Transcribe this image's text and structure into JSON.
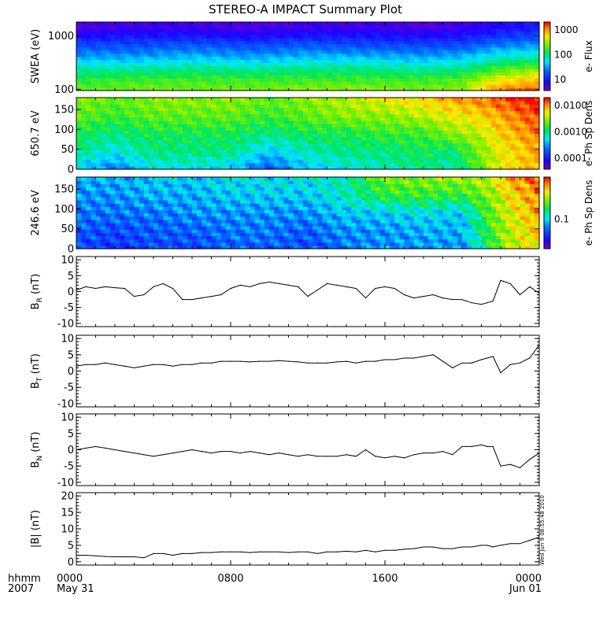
{
  "title": "STEREO-A IMPACT Summary Plot",
  "stamp": "Wed Jun  9 08:55:48 2010",
  "x_axis": {
    "corner_labels": [
      "hhmm",
      "2007"
    ],
    "ticks": [
      {
        "hour": 0,
        "label": "0000",
        "sub": "May 31"
      },
      {
        "hour": 8,
        "label": "0800",
        "sub": ""
      },
      {
        "hour": 16,
        "label": "1600",
        "sub": ""
      },
      {
        "hour": 24,
        "label": "0000",
        "sub": "Jun 01"
      }
    ],
    "range_hours": [
      0,
      24
    ]
  },
  "colors": {
    "line": "#000000",
    "frame": "#000000"
  },
  "chart_data": [
    {
      "type": "heatmap",
      "ylabel": "SWEA (eV)",
      "y_scale": "log",
      "ylim": [
        95,
        1800
      ],
      "y_ticks": [
        "1000",
        "100"
      ],
      "colorbar": {
        "label": "e- Flux",
        "scale": "log",
        "ticks": [
          "1000",
          "100",
          "10"
        ]
      },
      "x_hours": [
        0,
        3,
        6,
        9,
        12,
        15,
        18,
        20,
        21.2,
        22,
        24
      ],
      "energies_ev": [
        100,
        150,
        250,
        400,
        700,
        1000,
        1500
      ],
      "flux_log10": [
        [
          2.2,
          2.3,
          2.3,
          2.3,
          2.4,
          2.4,
          2.3,
          2.4,
          3.0,
          3.2,
          3.4
        ],
        [
          2.0,
          2.1,
          2.1,
          2.1,
          2.1,
          2.1,
          2.1,
          2.2,
          2.6,
          2.8,
          3.0
        ],
        [
          1.6,
          1.6,
          1.7,
          1.6,
          1.7,
          1.7,
          1.6,
          1.7,
          1.9,
          2.1,
          2.3
        ],
        [
          1.1,
          1.1,
          1.2,
          1.1,
          1.2,
          1.2,
          1.1,
          1.2,
          1.4,
          1.5,
          1.6
        ],
        [
          0.6,
          0.6,
          0.7,
          0.6,
          0.7,
          0.6,
          0.6,
          0.6,
          0.8,
          0.9,
          1.0
        ],
        [
          0.2,
          0.3,
          0.3,
          0.2,
          0.3,
          0.3,
          0.2,
          0.3,
          0.4,
          0.5,
          0.6
        ],
        [
          -0.1,
          0.0,
          0.0,
          -0.1,
          0.0,
          0.0,
          -0.1,
          0.0,
          0.1,
          0.2,
          0.3
        ]
      ]
    },
    {
      "type": "heatmap",
      "ylabel": "650.7 eV",
      "ylim": [
        0,
        180
      ],
      "y_ticks": [
        "150",
        "100",
        "50",
        "0"
      ],
      "colorbar": {
        "label": "e- Ph Sp Dens",
        "scale": "log",
        "ticks": [
          "0.0100",
          "0.0010",
          "0.0001"
        ]
      },
      "x_hours": [
        0,
        2,
        4,
        6,
        8,
        10,
        12,
        14,
        16,
        18,
        19.5,
        21,
        22,
        24
      ],
      "pitch_deg": [
        0,
        45,
        90,
        135,
        180
      ],
      "psd_log10": [
        [
          -3.3,
          -3.5,
          -3.2,
          -3.2,
          -3.3,
          -3.6,
          -3.3,
          -3.2,
          -3.1,
          -3.0,
          -3.1,
          -2.7,
          -2.4,
          -2.2
        ],
        [
          -3.0,
          -3.2,
          -3.0,
          -3.0,
          -3.0,
          -3.3,
          -3.1,
          -3.0,
          -3.0,
          -2.9,
          -3.0,
          -2.6,
          -2.4,
          -2.2
        ],
        [
          -2.9,
          -3.0,
          -2.9,
          -2.9,
          -2.9,
          -3.0,
          -2.9,
          -2.9,
          -2.8,
          -2.8,
          -2.6,
          -2.5,
          -2.3,
          -2.1
        ],
        [
          -2.7,
          -2.8,
          -2.7,
          -2.7,
          -2.7,
          -2.8,
          -2.7,
          -2.6,
          -2.6,
          -2.5,
          -2.4,
          -2.3,
          -2.2,
          -2.0
        ],
        [
          -2.6,
          -2.7,
          -2.6,
          -2.6,
          -2.6,
          -2.7,
          -2.6,
          -2.5,
          -2.4,
          -2.3,
          -2.2,
          -2.1,
          -2.0,
          -1.9
        ]
      ]
    },
    {
      "type": "heatmap",
      "ylabel": "246.6 eV",
      "ylim": [
        0,
        180
      ],
      "y_ticks": [
        "150",
        "100",
        "50",
        "0"
      ],
      "colorbar": {
        "label": "e- Ph Sp Dens",
        "scale": "log",
        "ticks": [
          "0.1"
        ]
      },
      "x_hours": [
        0,
        2,
        4,
        6,
        8,
        10,
        12,
        14,
        16,
        18,
        20,
        21.6,
        22.4,
        24
      ],
      "pitch_deg": [
        0,
        45,
        90,
        135,
        180
      ],
      "psd_log10": [
        [
          -1.45,
          -1.5,
          -1.45,
          -1.45,
          -1.4,
          -1.4,
          -1.45,
          -1.35,
          -1.3,
          -1.3,
          -1.3,
          -0.9,
          -0.7,
          -0.6
        ],
        [
          -1.4,
          -1.45,
          -1.4,
          -1.4,
          -1.35,
          -1.35,
          -1.4,
          -1.3,
          -1.3,
          -1.25,
          -1.25,
          -0.85,
          -0.7,
          -0.55
        ],
        [
          -1.35,
          -1.35,
          -1.35,
          -1.3,
          -1.3,
          -1.3,
          -1.3,
          -1.2,
          -1.2,
          -1.15,
          -1.2,
          -0.8,
          -0.65,
          -0.5
        ],
        [
          -1.3,
          -1.3,
          -1.25,
          -1.25,
          -1.2,
          -1.2,
          -1.2,
          -1.1,
          -0.9,
          -0.9,
          -0.9,
          -0.75,
          -0.6,
          -0.45
        ],
        [
          -1.25,
          -1.25,
          -1.2,
          -1.2,
          -1.15,
          -1.15,
          -1.15,
          -1.05,
          -0.8,
          -0.75,
          -0.75,
          -0.65,
          -0.5,
          -0.4
        ]
      ]
    },
    {
      "type": "line",
      "ylabel": "B",
      "ylabel_sub": "R",
      "ylabel_unit": " (nT)",
      "ylim": [
        -11,
        11
      ],
      "y_ticks": [
        10,
        5,
        0,
        -5,
        -10
      ],
      "x_hours": [
        0,
        0.5,
        1,
        1.5,
        2,
        2.5,
        3,
        3.5,
        4,
        4.5,
        5,
        5.5,
        6,
        6.5,
        7,
        7.5,
        8,
        8.5,
        9,
        9.5,
        10,
        10.5,
        11,
        11.5,
        12,
        12.5,
        13,
        13.5,
        14,
        14.5,
        15,
        15.5,
        16,
        16.5,
        17,
        17.5,
        18,
        18.5,
        19,
        19.5,
        20,
        20.5,
        21,
        21.3,
        21.6,
        22,
        22.5,
        23,
        23.5,
        24
      ],
      "values": [
        0.5,
        1.5,
        1.0,
        1.5,
        1.2,
        1.0,
        -1.5,
        -1.0,
        1.5,
        2.5,
        1.0,
        -2.5,
        -2.5,
        -2.0,
        -1.5,
        -1.0,
        1.0,
        2.0,
        1.5,
        2.5,
        3.0,
        2.5,
        2.0,
        1.5,
        -1.5,
        0.5,
        2.5,
        2.0,
        1.5,
        1.0,
        -2.0,
        1.0,
        1.5,
        1.0,
        -1.0,
        -2.0,
        -1.5,
        -1.0,
        -2.0,
        -2.5,
        -2.5,
        -3.5,
        -4.0,
        -3.5,
        -3.0,
        3.5,
        2.5,
        -1.0,
        1.5,
        -0.5
      ]
    },
    {
      "type": "line",
      "ylabel": "B",
      "ylabel_sub": "T",
      "ylabel_unit": " (nT)",
      "ylim": [
        -11,
        11
      ],
      "y_ticks": [
        10,
        5,
        0,
        -5,
        -10
      ],
      "x_hours": [
        0,
        0.5,
        1,
        1.5,
        2,
        2.5,
        3,
        3.5,
        4,
        4.5,
        5,
        5.5,
        6,
        6.5,
        7,
        7.5,
        8,
        8.5,
        9,
        9.5,
        10,
        10.5,
        11,
        11.5,
        12,
        12.5,
        13,
        13.5,
        14,
        14.5,
        15,
        15.5,
        16,
        16.5,
        17,
        17.5,
        18,
        18.5,
        19,
        19.5,
        20,
        20.5,
        21,
        21.3,
        21.6,
        22,
        22.5,
        23,
        23.5,
        24
      ],
      "values": [
        1.5,
        2.0,
        2.0,
        2.5,
        2.0,
        1.5,
        1.0,
        1.5,
        2.0,
        2.0,
        1.5,
        2.0,
        2.0,
        2.5,
        2.5,
        3.0,
        3.0,
        3.0,
        2.8,
        3.0,
        3.0,
        3.2,
        3.0,
        2.8,
        2.5,
        2.5,
        2.5,
        2.8,
        3.0,
        2.5,
        3.0,
        3.0,
        3.5,
        3.5,
        4.0,
        4.0,
        4.5,
        5.0,
        3.0,
        1.0,
        2.5,
        2.5,
        3.5,
        4.0,
        4.5,
        -0.5,
        2.0,
        2.5,
        4.0,
        8.0
      ]
    },
    {
      "type": "line",
      "ylabel": "B",
      "ylabel_sub": "N",
      "ylabel_unit": " (nT)",
      "ylim": [
        -11,
        11
      ],
      "y_ticks": [
        10,
        5,
        0,
        -5,
        -10
      ],
      "x_hours": [
        0,
        0.5,
        1,
        1.5,
        2,
        2.5,
        3,
        3.5,
        4,
        4.5,
        5,
        5.5,
        6,
        6.5,
        7,
        7.5,
        8,
        8.5,
        9,
        9.5,
        10,
        10.5,
        11,
        11.5,
        12,
        12.5,
        13,
        13.5,
        14,
        14.5,
        15,
        15.5,
        16,
        16.5,
        17,
        17.5,
        18,
        18.5,
        19,
        19.5,
        20,
        20.5,
        21,
        21.3,
        21.6,
        22,
        22.5,
        23,
        23.5,
        24
      ],
      "values": [
        0.0,
        0.5,
        1.0,
        0.5,
        0.0,
        -0.5,
        -1.0,
        -1.5,
        -2.0,
        -1.5,
        -1.0,
        -0.5,
        0.0,
        -0.5,
        -1.0,
        -0.5,
        -0.5,
        -1.0,
        -0.5,
        -1.0,
        -1.5,
        -1.0,
        -1.5,
        -2.0,
        -1.5,
        -2.0,
        -2.0,
        -2.0,
        -1.5,
        -2.0,
        0.0,
        -2.0,
        -2.5,
        -2.0,
        -2.5,
        -1.5,
        -1.0,
        -1.0,
        -0.5,
        -1.5,
        1.0,
        1.0,
        1.5,
        1.0,
        1.0,
        -5.0,
        -4.5,
        -5.5,
        -3.0,
        -1.0
      ]
    },
    {
      "type": "line",
      "ylabel": "|B| (nT)",
      "ylim": [
        -1,
        21
      ],
      "y_ticks": [
        20,
        15,
        10,
        5,
        0
      ],
      "x_hours": [
        0,
        0.5,
        1,
        1.5,
        2,
        2.5,
        3,
        3.5,
        4,
        4.5,
        5,
        5.5,
        6,
        6.5,
        7,
        7.5,
        8,
        8.5,
        9,
        9.5,
        10,
        10.5,
        11,
        11.5,
        12,
        12.5,
        13,
        13.5,
        14,
        14.5,
        15,
        15.5,
        16,
        16.5,
        17,
        17.5,
        18,
        18.5,
        19,
        19.5,
        20,
        20.5,
        21,
        21.3,
        21.6,
        22,
        22.5,
        23,
        23.5,
        24
      ],
      "values": [
        2.0,
        2.0,
        1.8,
        1.6,
        1.5,
        1.5,
        1.5,
        1.2,
        2.5,
        2.5,
        2.0,
        2.5,
        2.5,
        2.8,
        2.8,
        3.0,
        3.0,
        3.0,
        2.8,
        3.0,
        3.0,
        3.0,
        2.8,
        3.0,
        3.0,
        2.5,
        3.0,
        3.0,
        3.2,
        3.0,
        3.5,
        3.0,
        3.5,
        3.5,
        3.8,
        4.0,
        4.5,
        4.5,
        4.0,
        4.0,
        4.5,
        4.5,
        5.0,
        5.0,
        4.5,
        5.0,
        5.5,
        5.5,
        6.5,
        7.5
      ]
    }
  ]
}
